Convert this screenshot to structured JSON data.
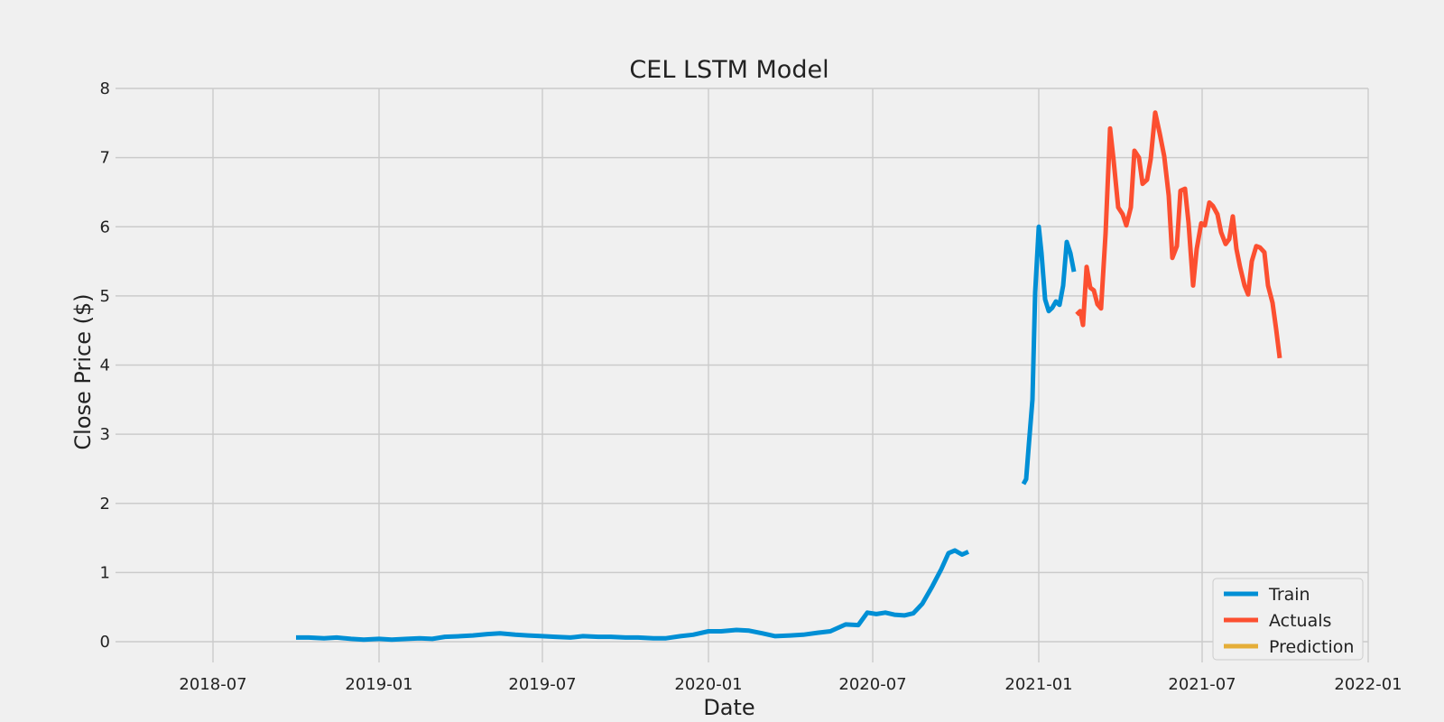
{
  "chart_data": {
    "type": "line",
    "title": "CEL LSTM Model",
    "xlabel": "Date",
    "ylabel": "Close Price ($)",
    "x_type": "date",
    "xlim": [
      "2018-03-15",
      "2022-01-01"
    ],
    "ylim": [
      -0.3,
      8
    ],
    "x_ticks": [
      "2018-07-01",
      "2019-01-01",
      "2019-07-01",
      "2020-01-01",
      "2020-07-01",
      "2021-01-01",
      "2021-07-01",
      "2022-01-01"
    ],
    "x_tick_labels": [
      "2018-07",
      "2019-01",
      "2019-07",
      "2020-01",
      "2020-07",
      "2021-01",
      "2021-07",
      "2022-01"
    ],
    "y_ticks": [
      0,
      1,
      2,
      3,
      4,
      5,
      6,
      7,
      8
    ],
    "grid": true,
    "legend_position": "bottom-right",
    "background_color": "#f0f0f0",
    "grid_color": "#cbcbcb",
    "series": [
      {
        "name": "Train",
        "color": "#008fd5",
        "segments": [
          [
            [
              "2018-10-01",
              0.06
            ],
            [
              "2018-10-15",
              0.06
            ],
            [
              "2018-11-01",
              0.05
            ],
            [
              "2018-11-15",
              0.06
            ],
            [
              "2018-12-01",
              0.04
            ],
            [
              "2018-12-15",
              0.03
            ],
            [
              "2019-01-01",
              0.04
            ],
            [
              "2019-01-15",
              0.03
            ],
            [
              "2019-02-01",
              0.04
            ],
            [
              "2019-02-15",
              0.05
            ],
            [
              "2019-03-01",
              0.04
            ],
            [
              "2019-03-15",
              0.07
            ],
            [
              "2019-04-01",
              0.08
            ],
            [
              "2019-04-15",
              0.09
            ],
            [
              "2019-05-01",
              0.11
            ],
            [
              "2019-05-15",
              0.12
            ],
            [
              "2019-06-01",
              0.1
            ],
            [
              "2019-06-15",
              0.09
            ],
            [
              "2019-07-01",
              0.08
            ],
            [
              "2019-07-15",
              0.07
            ],
            [
              "2019-08-01",
              0.06
            ],
            [
              "2019-08-15",
              0.08
            ],
            [
              "2019-09-01",
              0.07
            ],
            [
              "2019-09-15",
              0.07
            ],
            [
              "2019-10-01",
              0.06
            ],
            [
              "2019-10-15",
              0.06
            ],
            [
              "2019-11-01",
              0.05
            ],
            [
              "2019-11-15",
              0.05
            ],
            [
              "2019-12-01",
              0.08
            ],
            [
              "2019-12-15",
              0.1
            ],
            [
              "2020-01-01",
              0.15
            ],
            [
              "2020-01-15",
              0.15
            ],
            [
              "2020-02-01",
              0.17
            ],
            [
              "2020-02-15",
              0.16
            ],
            [
              "2020-03-01",
              0.12
            ],
            [
              "2020-03-15",
              0.08
            ],
            [
              "2020-04-01",
              0.09
            ],
            [
              "2020-04-15",
              0.1
            ],
            [
              "2020-05-01",
              0.13
            ],
            [
              "2020-05-15",
              0.15
            ],
            [
              "2020-06-01",
              0.25
            ],
            [
              "2020-06-15",
              0.24
            ],
            [
              "2020-06-25",
              0.42
            ],
            [
              "2020-07-05",
              0.4
            ],
            [
              "2020-07-15",
              0.42
            ],
            [
              "2020-07-25",
              0.39
            ],
            [
              "2020-08-05",
              0.38
            ],
            [
              "2020-08-15",
              0.41
            ],
            [
              "2020-08-25",
              0.55
            ],
            [
              "2020-09-05",
              0.8
            ],
            [
              "2020-09-15",
              1.05
            ],
            [
              "2020-09-23",
              1.28
            ],
            [
              "2020-09-30",
              1.32
            ],
            [
              "2020-10-08",
              1.26
            ],
            [
              "2020-10-15",
              1.3
            ]
          ],
          [
            [
              "2020-12-15",
              2.28
            ],
            [
              "2020-12-18",
              2.35
            ],
            [
              "2020-12-21",
              2.85
            ],
            [
              "2020-12-25",
              3.5
            ],
            [
              "2020-12-28",
              5.05
            ],
            [
              "2021-01-01",
              6.0
            ],
            [
              "2021-01-04",
              5.62
            ],
            [
              "2021-01-08",
              4.95
            ],
            [
              "2021-01-12",
              4.78
            ],
            [
              "2021-01-16",
              4.83
            ],
            [
              "2021-01-20",
              4.92
            ],
            [
              "2021-01-24",
              4.87
            ],
            [
              "2021-01-28",
              5.15
            ],
            [
              "2021-02-01",
              5.78
            ],
            [
              "2021-02-05",
              5.62
            ],
            [
              "2021-02-09",
              5.35
            ]
          ]
        ]
      },
      {
        "name": "Actuals",
        "color": "#fc4f30",
        "segments": [
          [
            [
              "2021-02-12",
              4.73
            ],
            [
              "2021-02-16",
              4.78
            ],
            [
              "2021-02-19",
              4.58
            ],
            [
              "2021-02-23",
              5.42
            ],
            [
              "2021-02-27",
              5.12
            ],
            [
              "2021-03-03",
              5.08
            ],
            [
              "2021-03-07",
              4.88
            ],
            [
              "2021-03-11",
              4.82
            ],
            [
              "2021-03-16",
              5.9
            ],
            [
              "2021-03-21",
              7.42
            ],
            [
              "2021-03-25",
              6.95
            ],
            [
              "2021-03-30",
              6.28
            ],
            [
              "2021-04-04",
              6.18
            ],
            [
              "2021-04-08",
              6.02
            ],
            [
              "2021-04-13",
              6.28
            ],
            [
              "2021-04-17",
              7.1
            ],
            [
              "2021-04-22",
              7.0
            ],
            [
              "2021-04-26",
              6.62
            ],
            [
              "2021-05-01",
              6.68
            ],
            [
              "2021-05-05",
              6.98
            ],
            [
              "2021-05-10",
              7.65
            ],
            [
              "2021-05-15",
              7.35
            ],
            [
              "2021-05-20",
              7.02
            ],
            [
              "2021-05-25",
              6.45
            ],
            [
              "2021-05-29",
              5.55
            ],
            [
              "2021-06-03",
              5.72
            ],
            [
              "2021-06-07",
              6.52
            ],
            [
              "2021-06-12",
              6.55
            ],
            [
              "2021-06-16",
              6.05
            ],
            [
              "2021-06-21",
              5.15
            ],
            [
              "2021-06-25",
              5.68
            ],
            [
              "2021-06-30",
              6.05
            ],
            [
              "2021-07-04",
              6.02
            ],
            [
              "2021-07-09",
              6.35
            ],
            [
              "2021-07-13",
              6.3
            ],
            [
              "2021-07-18",
              6.18
            ],
            [
              "2021-07-22",
              5.92
            ],
            [
              "2021-07-27",
              5.75
            ],
            [
              "2021-07-31",
              5.82
            ],
            [
              "2021-08-04",
              6.15
            ],
            [
              "2021-08-08",
              5.68
            ],
            [
              "2021-08-12",
              5.42
            ],
            [
              "2021-08-17",
              5.15
            ],
            [
              "2021-08-21",
              5.02
            ],
            [
              "2021-08-25",
              5.5
            ],
            [
              "2021-08-30",
              5.72
            ],
            [
              "2021-09-03",
              5.7
            ],
            [
              "2021-09-08",
              5.63
            ],
            [
              "2021-09-12",
              5.15
            ],
            [
              "2021-09-17",
              4.9
            ],
            [
              "2021-09-21",
              4.52
            ],
            [
              "2021-09-25",
              4.1
            ]
          ]
        ]
      },
      {
        "name": "Prediction",
        "color": "#e5ae38",
        "segments": []
      }
    ]
  }
}
